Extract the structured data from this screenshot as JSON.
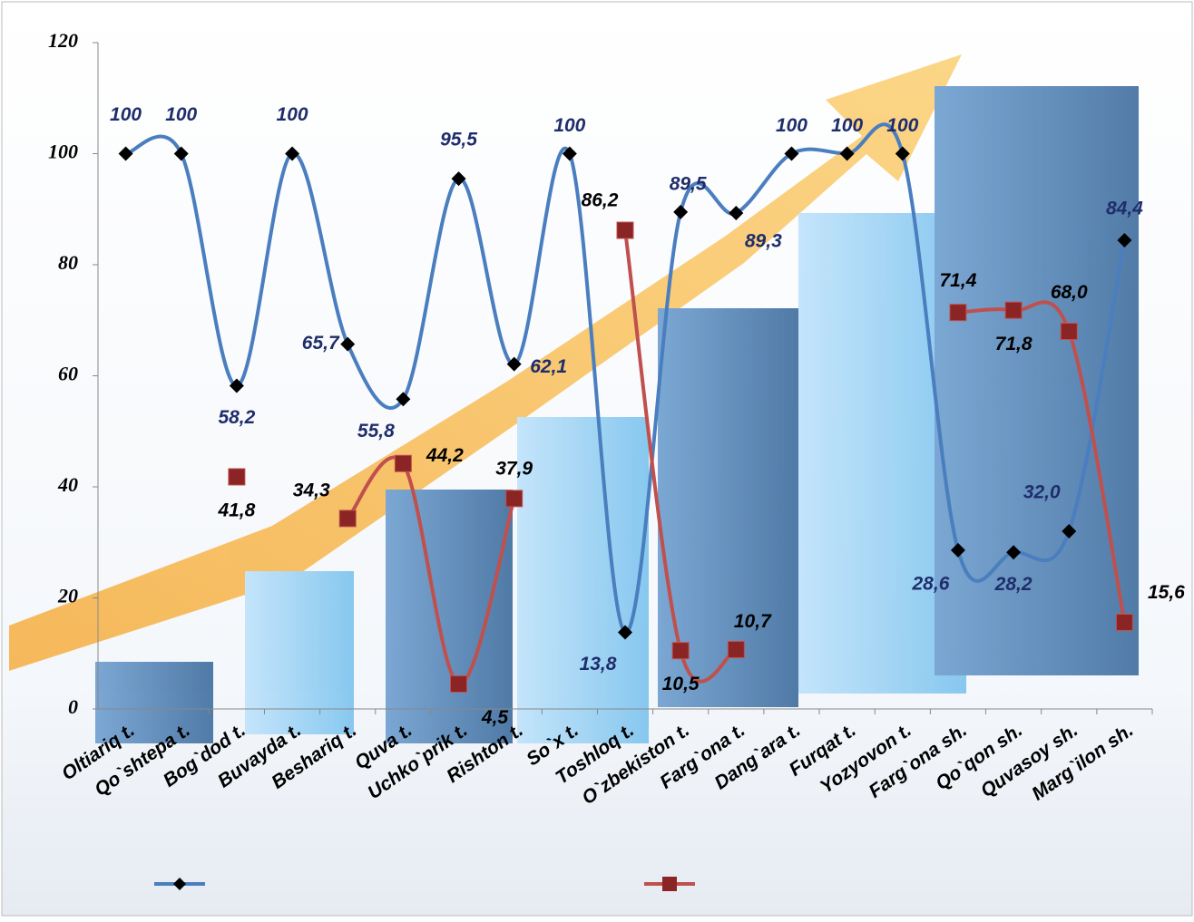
{
  "chart_data": {
    "type": "line",
    "categories": [
      "Oltiariq t.",
      "Qo`shtepa t.",
      "Bog`dod t.",
      "Buvayda t.",
      "Beshariq t.",
      "Quva t.",
      "Uchko`prik t.",
      "Rishton t.",
      "So`x t.",
      "Toshloq t.",
      "O`zbekiston t.",
      "Farg`ona t.",
      "Dang`ara t.",
      "Furqat t.",
      "Yozyovon t.",
      "Farg`ona sh.",
      "Qo`qon sh.",
      "Quvasoy sh.",
      "Marg`ilon sh."
    ],
    "series": [
      {
        "color": "#4a7ebf",
        "marker": "diamond",
        "marker_color": "#000000",
        "label_color": "#1f2d6b",
        "values": [
          100,
          100,
          58.2,
          100,
          65.7,
          55.8,
          95.5,
          62.1,
          100,
          13.8,
          89.5,
          89.3,
          100,
          100,
          100,
          28.6,
          28.2,
          32.0,
          84.4
        ],
        "value_labels": [
          "100",
          "100",
          "58,2",
          "100",
          "65,7",
          "55,8",
          "95,5",
          "62,1",
          "100",
          "13,8",
          "89,5",
          "89,3",
          "100",
          "100",
          "100",
          "28,6",
          "28,2",
          "32,0",
          "84,4"
        ]
      },
      {
        "color": "#c0504d",
        "marker": "square",
        "marker_color": "#8b2525",
        "label_color": "#000000",
        "values": [
          null,
          null,
          41.8,
          null,
          34.3,
          44.2,
          4.5,
          37.9,
          null,
          86.2,
          10.5,
          10.7,
          null,
          null,
          null,
          71.4,
          71.8,
          68.0,
          15.6
        ],
        "value_labels": [
          null,
          null,
          "41,8",
          null,
          "34,3",
          "44,2",
          "4,5",
          "37,9",
          null,
          "86,2",
          "10,5",
          "10,7",
          null,
          null,
          null,
          "71,4",
          "71,8",
          "68,0",
          "15,6"
        ]
      }
    ],
    "ylim": [
      0,
      120
    ],
    "yticks": [
      0,
      20,
      40,
      60,
      80,
      100,
      120
    ],
    "smooth": true
  }
}
